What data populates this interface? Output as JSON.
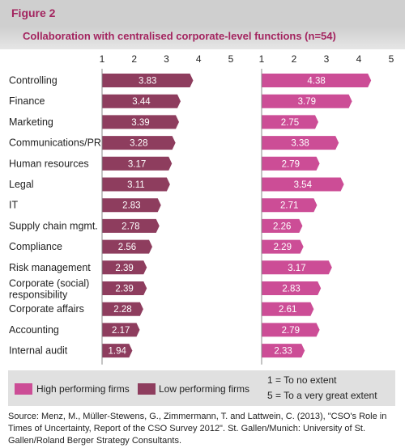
{
  "header": {
    "figure_label": "Figure 2",
    "title": "Collaboration with centralised corporate-level functions (n=54)"
  },
  "colors": {
    "high": "#cc4d96",
    "low": "#8e3d5e",
    "header_bg": "#cfcfcf",
    "title": "#a3245f",
    "legend_bg": "#e0e0e0"
  },
  "chart_data": {
    "type": "bar",
    "orientation": "horizontal",
    "title": "Collaboration with centralised corporate-level functions (n=54)",
    "xlim": [
      1,
      5
    ],
    "ticks": [
      "1",
      "2",
      "3",
      "4",
      "5"
    ],
    "categories": [
      "Controlling",
      "Finance",
      "Marketing",
      "Communications/PR",
      "Human resources",
      "Legal",
      "IT",
      "Supply chain mgmt.",
      "Compliance",
      "Risk management",
      "Corporate (social) responsibility",
      "Corporate affairs",
      "Accounting",
      "Internal audit"
    ],
    "series": [
      {
        "name": "Low performing firms",
        "panel": "left",
        "values": [
          3.83,
          3.44,
          3.39,
          3.28,
          3.17,
          3.11,
          2.83,
          2.78,
          2.56,
          2.39,
          2.39,
          2.28,
          2.17,
          1.94
        ],
        "labels": [
          "3.83",
          "3.44",
          "3.39",
          "3.28",
          "3.17",
          "3.11",
          "2.83",
          "2.78",
          "2.56",
          "2.39",
          "2.39",
          "2.28",
          "2.17",
          "1.94"
        ]
      },
      {
        "name": "High performing firms",
        "panel": "right",
        "values": [
          4.38,
          3.79,
          2.75,
          3.38,
          2.79,
          3.54,
          2.71,
          2.26,
          2.29,
          3.17,
          2.83,
          2.61,
          2.79,
          2.33
        ],
        "labels": [
          "4.38",
          "3.79",
          "2.75",
          "3.38",
          "2.79",
          "3.54",
          "2.71",
          "2.26",
          "2.29",
          "3.17",
          "2.83",
          "2.61",
          "2.79",
          "2.33"
        ]
      }
    ],
    "grid": false
  },
  "legend": {
    "high": "High performing firms",
    "low": "Low performing firms",
    "scale_low": "1 = To no extent",
    "scale_high": "5 = To a very great extent"
  },
  "source": "Source: Menz, M., Müller-Stewens, G., Zimmermann, T. and Lattwein, C. (2013), \"CSO's Role in Times of Uncertainty, Report of the CSO Survey 2012\". St. Gallen/Munich: University of St. Gallen/Roland Berger Strategy Consultants."
}
